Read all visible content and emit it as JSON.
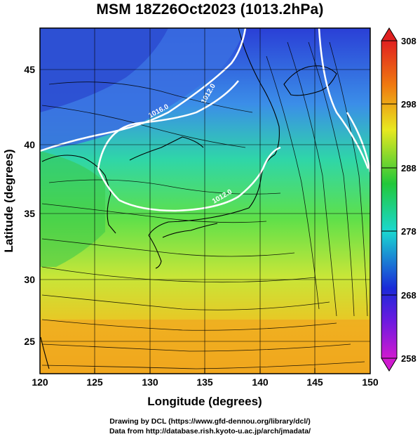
{
  "title": "MSM 18Z26Oct2023 (1013.2hPa)",
  "x_axis": {
    "label": "Longitude (degrees)",
    "ticks": [
      "120",
      "125",
      "130",
      "135",
      "140",
      "145",
      "150"
    ]
  },
  "y_axis": {
    "label": "Latitude (degrees)",
    "ticks": [
      "25",
      "30",
      "35",
      "40",
      "45"
    ]
  },
  "colorbar": {
    "ticks": [
      "258",
      "268",
      "278",
      "288",
      "298",
      "308"
    ],
    "colors": [
      "#d01ad0",
      "#1a2ad8",
      "#1ad8d0",
      "#22c83a",
      "#e8e820",
      "#f07a10",
      "#e02020"
    ]
  },
  "contour_labels": [
    "1016.0",
    "1012.0",
    "1012.0"
  ],
  "credits": {
    "line1": "Drawing by DCL (https://www.gfd-dennou.org/library/dcl/)",
    "line2": "Data from http://database.rish.kyoto-u.ac.jp/arch/jmadata/"
  },
  "chart_data": {
    "type": "heatmap",
    "title": "MSM 18Z26Oct2023 (1013.2hPa)",
    "xlabel": "Longitude (degrees)",
    "ylabel": "Latitude (degrees)",
    "xlim": [
      120,
      150
    ],
    "ylim": [
      22.4,
      47.6
    ],
    "colorbar_range": [
      258,
      308
    ],
    "colorbar_ticks": [
      258,
      268,
      278,
      288,
      298,
      308
    ],
    "contour_levels": [
      1012.0,
      1016.0
    ],
    "vectors": "streamlines"
  }
}
